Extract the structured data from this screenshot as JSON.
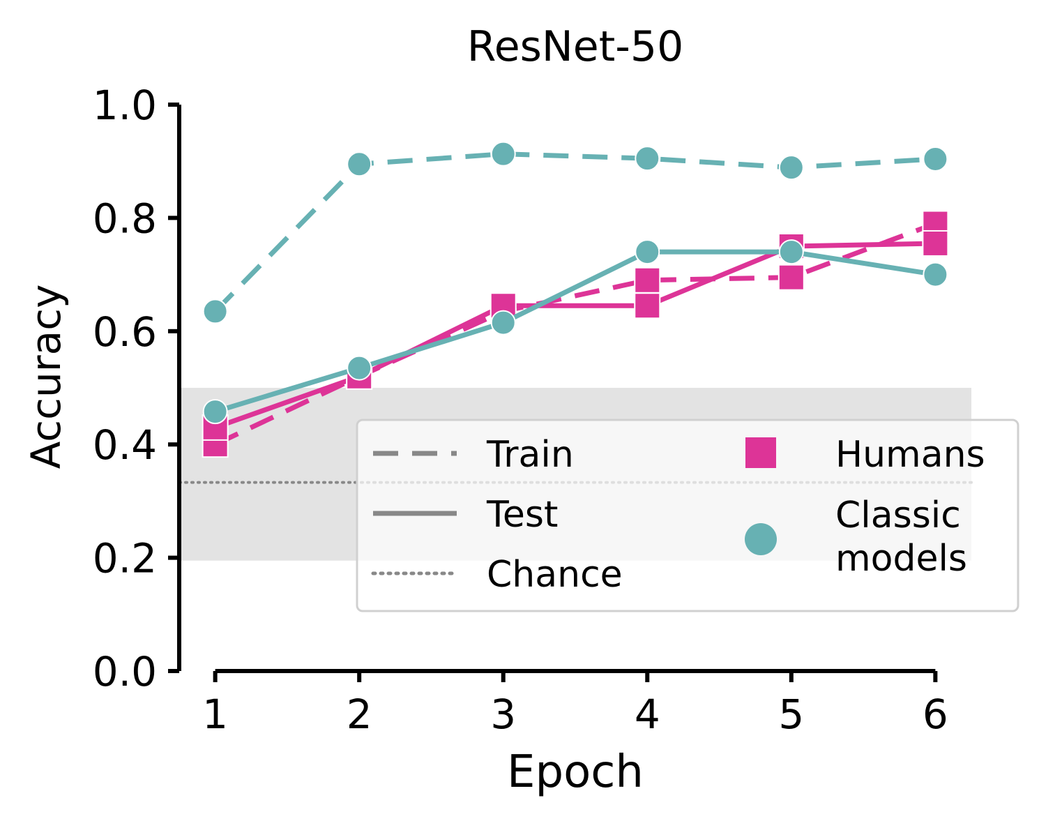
{
  "chart_data": {
    "type": "line",
    "title": "ResNet-50",
    "xlabel": "Epoch",
    "ylabel": "Accuracy",
    "x": [
      1,
      2,
      3,
      4,
      5,
      6
    ],
    "xlim": [
      0.75,
      6.25
    ],
    "ylim": [
      0,
      1.0
    ],
    "xticks": [
      "1",
      "2",
      "3",
      "4",
      "5",
      "6"
    ],
    "yticks": [
      "0.0",
      "0.2",
      "0.4",
      "0.6",
      "0.8",
      "1.0"
    ],
    "grid": false,
    "shaded_band": {
      "y_from": 0.195,
      "y_to": 0.5,
      "color": "#e3e3e3"
    },
    "chance_level": 0.333,
    "series": [
      {
        "group": "Humans",
        "split": "Train",
        "marker": "square",
        "style": "dashed",
        "color": "#dd3497",
        "values": [
          0.4,
          0.52,
          0.635,
          0.69,
          0.695,
          0.79
        ]
      },
      {
        "group": "Humans",
        "split": "Test",
        "marker": "square",
        "style": "solid",
        "color": "#dd3497",
        "values": [
          0.43,
          0.52,
          0.645,
          0.645,
          0.75,
          0.755
        ]
      },
      {
        "group": "Classic models",
        "split": "Train",
        "marker": "circle",
        "style": "dashed",
        "color": "#67b1b3",
        "values": [
          0.635,
          0.895,
          0.913,
          0.905,
          0.889,
          0.904
        ]
      },
      {
        "group": "Classic models",
        "split": "Test",
        "marker": "circle",
        "style": "solid",
        "color": "#67b1b3",
        "values": [
          0.458,
          0.535,
          0.615,
          0.74,
          0.74,
          0.7
        ]
      }
    ],
    "legend": {
      "placement": "lower-right",
      "line_entries": [
        {
          "label": "Train",
          "style": "dashed"
        },
        {
          "label": "Test",
          "style": "solid"
        },
        {
          "label": "Chance",
          "style": "dotted"
        }
      ],
      "marker_entries": [
        {
          "label": "Humans",
          "marker": "square",
          "color": "#dd3497"
        },
        {
          "label": "Classic\nmodels",
          "marker": "circle",
          "color": "#67b1b3"
        }
      ]
    }
  }
}
